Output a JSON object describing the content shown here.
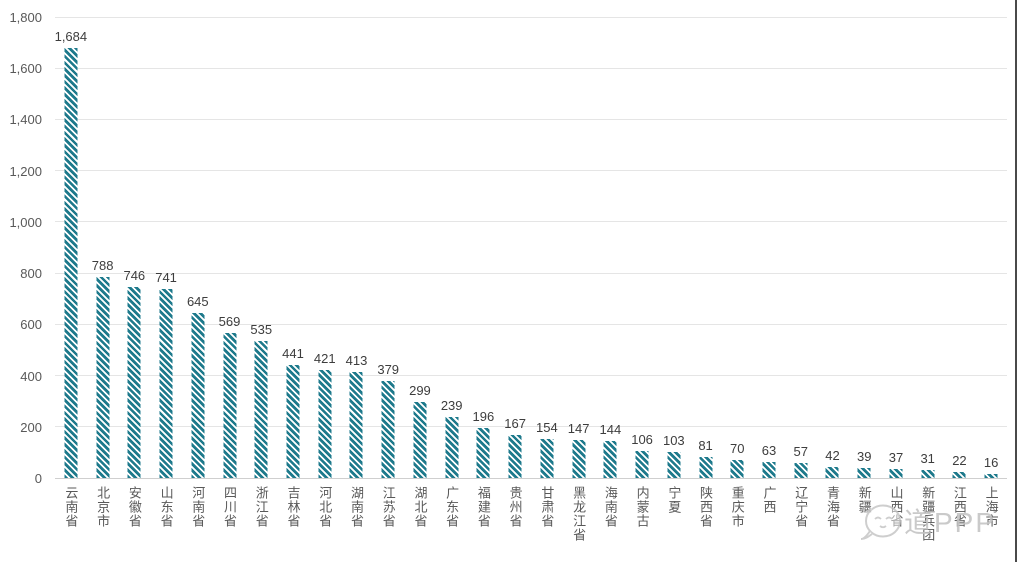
{
  "chart_data": {
    "type": "bar",
    "title": "",
    "xlabel": "",
    "ylabel": "",
    "categories": [
      "云南省",
      "北京市",
      "安徽省",
      "山东省",
      "河南省",
      "四川省",
      "浙江省",
      "吉林省",
      "河北省",
      "湖南省",
      "江苏省",
      "湖北省",
      "广东省",
      "福建省",
      "贵州省",
      "甘肃省",
      "黑龙江省",
      "海南省",
      "内蒙古",
      "宁夏",
      "陕西省",
      "重庆市",
      "广西",
      "辽宁省",
      "青海省",
      "新疆",
      "山西省",
      "新疆兵团",
      "江西省",
      "上海市"
    ],
    "values": [
      1684,
      788,
      746,
      741,
      645,
      569,
      535,
      441,
      421,
      413,
      379,
      299,
      239,
      196,
      167,
      154,
      147,
      144,
      106,
      103,
      81,
      70,
      63,
      57,
      42,
      39,
      37,
      31,
      22,
      16
    ],
    "value_labels": [
      "1,684",
      "788",
      "746",
      "741",
      "645",
      "569",
      "535",
      "441",
      "421",
      "413",
      "379",
      "299",
      "239",
      "196",
      "167",
      "154",
      "147",
      "144",
      "106",
      "103",
      "81",
      "70",
      "63",
      "57",
      "42",
      "39",
      "37",
      "31",
      "22",
      "16"
    ],
    "ylim": [
      0,
      1800
    ],
    "y_tick_values": [
      0,
      200,
      400,
      600,
      800,
      1000,
      1200,
      1400,
      1600,
      1800
    ],
    "y_tick_labels": [
      "0",
      "200",
      "400",
      "600",
      "800",
      "1,000",
      "1,200",
      "1,400",
      "1,600",
      "1,800"
    ],
    "grid": true,
    "legend": "none",
    "bar_color": "#1e7a8c",
    "bar_pattern": "diagonal-stripes",
    "value_label_color": "#3d3d3d",
    "axis_label_color": "#595959"
  },
  "watermark": {
    "icon": "chat-bubble-face-icon",
    "text": "道PPP"
  }
}
